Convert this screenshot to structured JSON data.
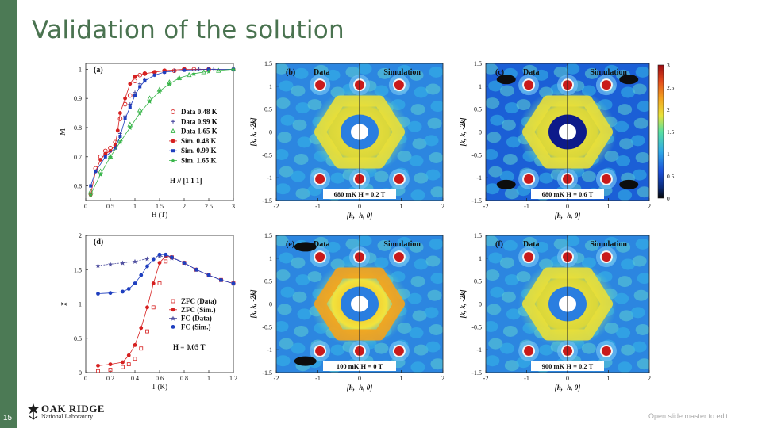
{
  "slide": {
    "title": "Validation of the solution",
    "number": "15",
    "footer_note": "Open slide master to edit",
    "logo_line1": "OAK RIDGE",
    "logo_line2": "National Laboratory",
    "accent_color": "#4c7a55",
    "title_color": "#4a7350"
  },
  "chart_data": [
    {
      "panel": "(a)",
      "type": "scatter",
      "xlabel": "H (T)",
      "ylabel": "M",
      "xlim": [
        0,
        3
      ],
      "ylim": [
        0.55,
        1.02
      ],
      "xticks": [
        0,
        0.5,
        1,
        1.5,
        2,
        2.5,
        3
      ],
      "xtick_labels": [
        "0",
        "0.5",
        "1",
        "1.5",
        "2",
        "2.5",
        "3"
      ],
      "yticks": [
        0.6,
        0.7,
        0.8,
        0.9,
        1
      ],
      "ytick_labels": [
        "0.6",
        "0.7",
        "0.8",
        "0.9",
        "1"
      ],
      "annotation": "H // [1 1 1]",
      "legend_position": "center-right",
      "series": [
        {
          "name": "Data 0.48 K",
          "style": "open-circle",
          "color": "#d62020",
          "x": [
            0.2,
            0.3,
            0.4,
            0.5,
            0.6,
            0.7,
            0.8,
            0.9,
            1.0,
            1.1,
            1.2,
            1.4,
            1.6,
            1.8,
            2.0,
            2.2,
            2.5
          ],
          "y": [
            0.66,
            0.7,
            0.72,
            0.73,
            0.75,
            0.83,
            0.88,
            0.91,
            0.96,
            0.98,
            0.985,
            0.99,
            0.995,
            0.995,
            1.0,
            1.0,
            1.0
          ]
        },
        {
          "name": "Data 0.99 K",
          "style": "plus",
          "color": "#3d3d9a",
          "x": [
            0.2,
            0.4,
            0.6,
            0.7,
            0.8,
            0.9,
            1.0,
            1.1,
            1.2,
            1.4,
            1.6,
            1.8,
            2.0,
            2.3,
            2.6
          ],
          "y": [
            0.65,
            0.71,
            0.74,
            0.78,
            0.84,
            0.88,
            0.92,
            0.95,
            0.965,
            0.98,
            0.99,
            0.995,
            0.997,
            1.0,
            1.0
          ]
        },
        {
          "name": "Data 1.65 K",
          "style": "open-triangle",
          "color": "#39b54a",
          "x": [
            0.1,
            0.3,
            0.5,
            0.7,
            0.9,
            1.1,
            1.3,
            1.5,
            1.7,
            1.9,
            2.1,
            2.4,
            2.7,
            3.0
          ],
          "y": [
            0.58,
            0.65,
            0.7,
            0.76,
            0.81,
            0.86,
            0.9,
            0.93,
            0.955,
            0.97,
            0.98,
            0.99,
            0.995,
            1.0
          ]
        },
        {
          "name": "Sim. 0.48 K",
          "style": "filled-circle",
          "color": "#d62020",
          "x": [
            0.1,
            0.2,
            0.3,
            0.4,
            0.5,
            0.6,
            0.65,
            0.7,
            0.8,
            0.9,
            1.0,
            1.2,
            1.4,
            1.6,
            2.0,
            2.5,
            3.0
          ],
          "y": [
            0.57,
            0.65,
            0.69,
            0.71,
            0.72,
            0.74,
            0.79,
            0.85,
            0.9,
            0.95,
            0.975,
            0.985,
            0.99,
            0.995,
            1.0,
            1.0,
            1.0
          ]
        },
        {
          "name": "Sim. 0.99 K",
          "style": "filled-square",
          "color": "#1f3fbf",
          "x": [
            0.1,
            0.2,
            0.4,
            0.6,
            0.7,
            0.8,
            0.9,
            1.0,
            1.1,
            1.2,
            1.4,
            1.6,
            2.0,
            2.5,
            3.0
          ],
          "y": [
            0.6,
            0.65,
            0.7,
            0.73,
            0.77,
            0.83,
            0.87,
            0.91,
            0.94,
            0.96,
            0.98,
            0.99,
            0.997,
            1.0,
            1.0
          ]
        },
        {
          "name": "Sim. 1.65 K",
          "style": "filled-star",
          "color": "#39b54a",
          "x": [
            0.1,
            0.3,
            0.5,
            0.7,
            0.9,
            1.1,
            1.3,
            1.5,
            1.7,
            1.9,
            2.2,
            2.5,
            3.0
          ],
          "y": [
            0.57,
            0.64,
            0.7,
            0.75,
            0.8,
            0.85,
            0.89,
            0.925,
            0.95,
            0.97,
            0.985,
            0.993,
            1.0
          ]
        }
      ]
    },
    {
      "panel": "(d)",
      "type": "scatter",
      "xlabel": "T (K)",
      "ylabel": "χ",
      "xlim": [
        0,
        1.2
      ],
      "ylim": [
        0,
        2
      ],
      "xticks": [
        0,
        0.2,
        0.4,
        0.6,
        0.8,
        1.0,
        1.2
      ],
      "xtick_labels": [
        "0",
        "0.2",
        "0.4",
        "0.6",
        "0.8",
        "1",
        "1.2"
      ],
      "yticks": [
        0,
        0.5,
        1,
        1.5,
        2
      ],
      "ytick_labels": [
        "0",
        "0.5",
        "1",
        "1.5",
        "2"
      ],
      "annotation": "H = 0.05 T",
      "legend_position": "center-right",
      "series": [
        {
          "name": "ZFC (Data)",
          "style": "open-square",
          "color": "#d62020",
          "x": [
            0.1,
            0.2,
            0.3,
            0.35,
            0.4,
            0.45,
            0.5,
            0.55,
            0.6,
            0.65,
            0.7,
            0.8,
            0.9,
            1.0,
            1.1,
            1.2
          ],
          "y": [
            0.02,
            0.04,
            0.08,
            0.12,
            0.2,
            0.35,
            0.6,
            0.95,
            1.3,
            1.62,
            1.68,
            1.6,
            1.5,
            1.42,
            1.35,
            1.3
          ]
        },
        {
          "name": "ZFC (Sim.)",
          "style": "filled-circle",
          "color": "#d62020",
          "x": [
            0.1,
            0.2,
            0.3,
            0.35,
            0.4,
            0.45,
            0.5,
            0.55,
            0.6,
            0.65,
            0.7,
            0.8,
            0.9,
            1.0,
            1.1,
            1.2
          ],
          "y": [
            0.1,
            0.12,
            0.15,
            0.25,
            0.4,
            0.65,
            0.95,
            1.3,
            1.6,
            1.7,
            1.68,
            1.6,
            1.5,
            1.42,
            1.35,
            1.3
          ]
        },
        {
          "name": "FC (Data)",
          "style": "dash-star",
          "color": "#5050a0",
          "x": [
            0.1,
            0.2,
            0.3,
            0.4,
            0.5,
            0.6,
            0.7,
            0.8,
            0.9,
            1.0,
            1.1,
            1.2
          ],
          "y": [
            1.56,
            1.58,
            1.6,
            1.62,
            1.66,
            1.7,
            1.67,
            1.6,
            1.5,
            1.42,
            1.35,
            1.3
          ]
        },
        {
          "name": "FC (Sim.)",
          "style": "filled-circle",
          "color": "#1f3fbf",
          "x": [
            0.1,
            0.2,
            0.3,
            0.35,
            0.4,
            0.45,
            0.5,
            0.55,
            0.6,
            0.65,
            0.7,
            0.8,
            0.9,
            1.0,
            1.1,
            1.2
          ],
          "y": [
            1.15,
            1.16,
            1.18,
            1.22,
            1.3,
            1.42,
            1.55,
            1.65,
            1.72,
            1.72,
            1.68,
            1.6,
            1.5,
            1.42,
            1.35,
            1.3
          ]
        }
      ]
    },
    {
      "type": "heatmap",
      "xlabel": "[h, -h, 0]",
      "ylabel": "[k, k, -2k]",
      "xlim": [
        -2,
        2
      ],
      "ylim": [
        -1.5,
        1.5
      ],
      "xticks": [
        -2,
        -1,
        0,
        1,
        2
      ],
      "xtick_labels": [
        "-2",
        "-1",
        "0",
        "1",
        "2"
      ],
      "yticks": [
        -1.5,
        -1,
        -0.5,
        0,
        0.5,
        1,
        1.5
      ],
      "ytick_labels": [
        "-1.5",
        "-1",
        "-0.5",
        "0",
        "0.5",
        "1",
        "1.5"
      ],
      "left_label": "Data",
      "right_label": "Simulation",
      "colorbar": {
        "ticks": [
          0,
          0.5,
          1,
          1.5,
          2,
          2.5,
          3
        ],
        "tick_labels": [
          "0",
          "0.5",
          "1",
          "1.5",
          "2",
          "2.5",
          "3"
        ]
      },
      "panels": [
        {
          "panel": "(b)",
          "condition": "680 mK  H = 0.2 T"
        },
        {
          "panel": "(c)",
          "condition": "680 mK  H = 0.6 T"
        },
        {
          "panel": "(e)",
          "condition": "100 mK  H = 0 T"
        },
        {
          "panel": "(f)",
          "condition": "900 mK  H = 0.2 T"
        }
      ]
    }
  ]
}
